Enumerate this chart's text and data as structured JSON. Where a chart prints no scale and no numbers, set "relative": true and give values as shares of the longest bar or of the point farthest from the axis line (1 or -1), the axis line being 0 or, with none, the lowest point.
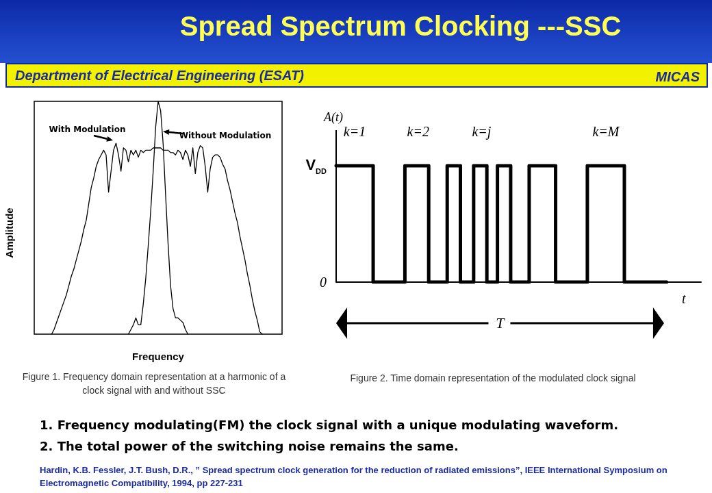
{
  "chart_data": [
    {
      "type": "line",
      "title": "Spread Spectrum Clocking ---SSC",
      "subtitle": "Department of Electrical Engineering (ESAT)",
      "xlabel": "Frequency",
      "ylabel": "Amplitude",
      "relative": true,
      "marker": "none",
      "annotations": [
        "MICAS",
        "Figure 1.   Frequency domain representation at a harmonic of a clock signal with and without SSC",
        "1.  Frequency modulating(FM)  the clock signal with a unique modulating waveform.",
        "2.  The total power of the switching noise remains the same.",
        "Hardin, K.B.    Fessler, J.T.    Bush, D.R., ” Spread spectrum clock generation for the reduction of radiated emissions”, IEEE International Symposium on Electromagnetic Compatibility, 1994, pp 227-231"
      ],
      "categories": [
        null,
        null,
        null,
        null,
        null,
        null,
        null,
        null,
        null,
        null,
        null,
        null,
        null,
        null,
        null,
        null,
        null,
        null,
        null,
        null,
        null,
        null,
        null,
        null,
        null,
        null,
        null,
        null,
        null,
        null,
        null,
        null,
        null,
        null,
        null,
        null,
        null,
        null,
        null,
        null,
        null,
        null,
        null,
        null,
        null,
        null,
        null,
        null,
        null,
        null,
        null,
        null,
        null,
        null,
        null,
        null,
        null,
        null,
        null,
        null,
        null,
        null,
        null,
        null,
        null,
        null,
        null,
        null,
        null,
        null,
        null,
        null,
        null,
        null,
        null,
        null,
        null,
        null,
        null,
        null,
        null,
        null,
        null,
        null,
        null,
        null,
        null,
        null,
        null,
        null,
        null,
        null,
        null,
        null,
        null,
        null,
        null,
        null,
        null,
        null,
        null
      ],
      "series": [
        {
          "name": "With Modulation",
          "color": "#000000",
          "values": [
            null,
            null,
            null,
            null,
            null,
            null,
            null,
            0,
            0.02,
            0.05,
            0.08,
            0.11,
            0.14,
            0.17,
            0.21,
            0.25,
            0.28,
            0.32,
            0.36,
            0.4,
            0.45,
            0.49,
            0.56,
            0.63,
            0.67,
            0.72,
            0.75,
            0.77,
            0.79,
            0.77,
            0.61,
            0.7,
            0.79,
            0.82,
            0.77,
            0.7,
            0.8,
            0.79,
            0.74,
            0.79,
            0.77,
            0.79,
            0.76,
            0.79,
            0.78,
            0.79,
            0.79,
            0.79,
            0.8,
            0.8,
            0.8,
            0.8,
            0.79,
            0.79,
            0.79,
            0.78,
            0.78,
            0.77,
            0.79,
            0.78,
            0.75,
            0.79,
            0.77,
            0.72,
            0.8,
            0.69,
            0.78,
            0.81,
            0.8,
            0.72,
            0.61,
            0.71,
            0.76,
            0.77,
            0.77,
            0.76,
            0.73,
            0.71,
            0.66,
            0.62,
            0.57,
            0.52,
            0.48,
            0.42,
            0.37,
            0.32,
            0.26,
            0.21,
            0.15,
            0.1,
            0.06,
            0.01,
            0,
            null,
            null,
            null,
            null,
            null,
            null,
            null,
            null
          ]
        },
        {
          "name": "Without Modulation",
          "color": "#000000",
          "values": [
            null,
            null,
            null,
            null,
            null,
            null,
            null,
            null,
            null,
            null,
            null,
            null,
            null,
            null,
            null,
            null,
            null,
            null,
            null,
            null,
            null,
            null,
            null,
            null,
            null,
            null,
            null,
            null,
            null,
            null,
            null,
            null,
            null,
            null,
            null,
            null,
            null,
            null,
            0,
            0.02,
            0.04,
            0.07,
            0.04,
            0.04,
            0.13,
            0.24,
            0.38,
            0.53,
            0.7,
            0.89,
            1,
            0.96,
            0.82,
            0.6,
            0.39,
            0.21,
            0.11,
            0.07,
            0.07,
            0.06,
            0.05,
            0.02,
            0,
            null,
            null,
            null,
            null,
            null,
            null,
            null,
            null,
            null,
            null,
            null,
            null,
            null,
            null,
            null,
            null,
            null,
            null,
            null,
            null,
            null,
            null,
            null,
            null,
            null,
            null,
            null,
            null,
            null,
            null,
            null,
            null,
            null,
            null,
            null,
            null,
            null,
            null
          ]
        }
      ]
    },
    {
      "type": "step",
      "xlabel": "t",
      "ylabel": "A(t)",
      "relative": true,
      "marker": "none",
      "categories": [
        null,
        null,
        null,
        null,
        null,
        null,
        null,
        null,
        null,
        null,
        null,
        null,
        null,
        null,
        null,
        null,
        null,
        null,
        null,
        null,
        null,
        null,
        null,
        null,
        null,
        null,
        null,
        null,
        null,
        null,
        null,
        null,
        null,
        null,
        null,
        null,
        null,
        null,
        null,
        null,
        null,
        null,
        null,
        null,
        null,
        null,
        null,
        null,
        null,
        null,
        null,
        null,
        null,
        null,
        null,
        null,
        null,
        null,
        null,
        null,
        null,
        null,
        null,
        null,
        null,
        null,
        null,
        null,
        null,
        null,
        null,
        null,
        null,
        null,
        null,
        null,
        null,
        null,
        null,
        null,
        null,
        null,
        null,
        null,
        null,
        null,
        null,
        null,
        null,
        null,
        null,
        null,
        null,
        null,
        null,
        null,
        null,
        null,
        null,
        null,
        null,
        null,
        null,
        null,
        null,
        null,
        null,
        null,
        null,
        null,
        null,
        null,
        null,
        null,
        null,
        null,
        null,
        null,
        null,
        null,
        null,
        null,
        null,
        null,
        null,
        null,
        null,
        null,
        null,
        null,
        null,
        null,
        null,
        null,
        null,
        null,
        null,
        null,
        null
      ],
      "annotations": [
        "Figure 2. Time domain representation  of the modulated  clock signal",
        "0",
        "V$_{DD}$",
        "k=1",
        "k=2",
        "k=j",
        "k=M",
        "T"
      ],
      "series": [
        {
          "color": "#000000",
          "values": [
            1,
            1,
            1,
            1,
            1,
            1,
            1,
            1,
            1,
            1,
            1,
            1,
            1,
            1,
            0,
            0,
            0,
            0,
            0,
            0,
            0,
            0,
            0,
            0,
            0,
            0,
            1,
            1,
            1,
            1,
            1,
            1,
            1,
            1,
            1,
            0,
            0,
            0,
            0,
            0,
            0,
            0,
            1,
            1,
            1,
            1,
            1,
            0,
            0,
            0,
            0,
            0,
            1,
            1,
            1,
            1,
            1,
            0,
            0,
            0,
            0,
            1,
            1,
            1,
            1,
            1,
            0,
            0,
            0,
            0,
            0,
            0,
            0,
            1,
            1,
            1,
            1,
            1,
            1,
            1,
            1,
            1,
            1,
            0,
            0,
            0,
            0,
            0,
            0,
            0,
            0,
            0,
            0,
            0,
            0,
            1,
            1,
            1,
            1,
            1,
            1,
            1,
            1,
            1,
            1,
            1,
            1,
            1,
            1,
            0,
            0,
            0,
            0,
            0,
            0,
            0,
            0,
            0,
            0,
            0,
            0,
            0,
            0,
            0,
            0,
            null,
            null,
            null,
            null,
            null,
            null,
            null,
            null,
            null,
            null,
            null,
            null,
            null,
            null
          ]
        }
      ]
    }
  ]
}
